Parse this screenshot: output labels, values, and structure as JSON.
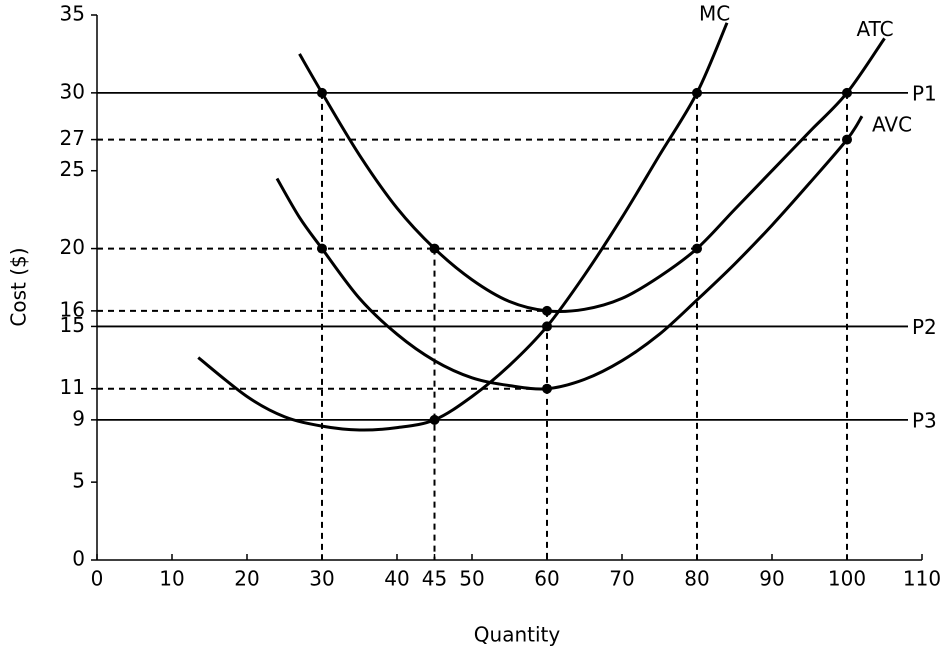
{
  "chart_data": {
    "type": "line",
    "xlabel": "Quantity",
    "ylabel": "Cost ($)",
    "xlim": [
      0,
      110
    ],
    "ylim": [
      0,
      35
    ],
    "xticks": [
      0,
      10,
      20,
      30,
      40,
      45,
      50,
      60,
      70,
      80,
      90,
      100,
      110
    ],
    "yticks": [
      0,
      5,
      9,
      11,
      15,
      16,
      20,
      25,
      27,
      30,
      35
    ],
    "series": [
      {
        "name": "MC",
        "color": "#000000",
        "x": [
          13.5,
          20,
          25,
          30,
          35,
          40,
          45,
          50,
          55,
          60,
          65,
          70,
          75,
          80,
          84
        ],
        "values": [
          13,
          10.5,
          9.2,
          8.6,
          8.35,
          8.5,
          9,
          10.5,
          12.5,
          15,
          18.3,
          22,
          26,
          30,
          34.5
        ]
      },
      {
        "name": "ATC",
        "color": "#000000",
        "x": [
          27,
          30,
          35,
          40,
          45,
          50,
          55,
          60,
          65,
          70,
          75,
          80,
          85,
          90,
          95,
          100,
          105
        ],
        "values": [
          32.5,
          30,
          26,
          22.6,
          20,
          18,
          16.6,
          16,
          16.1,
          16.8,
          18.2,
          20,
          22.5,
          25,
          27.5,
          30,
          33.5
        ]
      },
      {
        "name": "AVC",
        "color": "#000000",
        "x": [
          24,
          27,
          30,
          35,
          40,
          45,
          50,
          55,
          60,
          65,
          70,
          75,
          80,
          85,
          90,
          95,
          100,
          102
        ],
        "values": [
          24.5,
          22,
          20,
          16.8,
          14.5,
          12.8,
          11.7,
          11.2,
          11,
          11.6,
          12.8,
          14.5,
          16.7,
          19,
          21.5,
          24.2,
          27,
          28.5
        ]
      }
    ],
    "price_lines": [
      {
        "name": "P1",
        "value": 30
      },
      {
        "name": "P2",
        "value": 15
      },
      {
        "name": "P3",
        "value": 9
      }
    ],
    "dashed_h": [
      {
        "y": 27,
        "x": 100
      },
      {
        "y": 20,
        "x": 80
      },
      {
        "y": 16,
        "x": 60
      },
      {
        "y": 11,
        "x": 60
      }
    ],
    "dashed_v": [
      {
        "x": 30,
        "y": 30
      },
      {
        "x": 45,
        "y": 20
      },
      {
        "x": 60,
        "y": 16
      },
      {
        "x": 80,
        "y": 30
      },
      {
        "x": 100,
        "y": 30
      }
    ],
    "points": {
      "x": [
        30,
        30,
        45,
        45,
        60,
        60,
        60,
        80,
        80,
        100,
        100
      ],
      "values": [
        30,
        20,
        20,
        9,
        16,
        15,
        11,
        30,
        20,
        30,
        27
      ]
    }
  }
}
